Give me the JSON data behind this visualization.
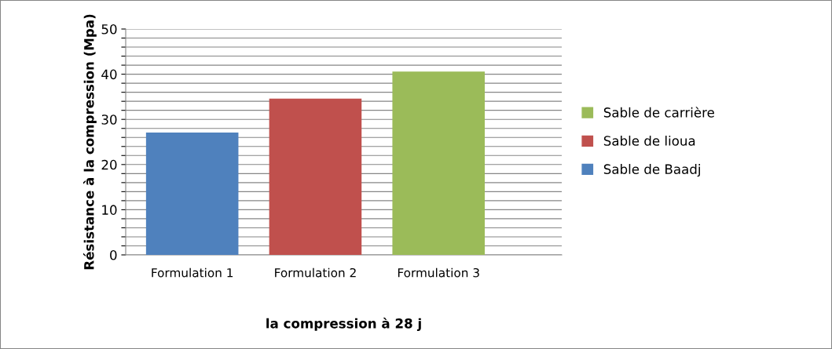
{
  "chart_data": {
    "type": "bar",
    "xlabel": "la compression à 28 j",
    "ylabel": "Résistance à la compression (Mpa)",
    "categories": [
      "Formulation 1",
      "Formulation 2",
      "Formulation 3"
    ],
    "series": [
      {
        "name": "Sable de Baadj",
        "color": "#4f81bd",
        "values": [
          27.1,
          null,
          null
        ]
      },
      {
        "name": "Sable de lioua",
        "color": "#c0504d",
        "values": [
          null,
          34.6,
          null
        ]
      },
      {
        "name": "Sable de carrière",
        "color": "#9bbb59",
        "values": [
          null,
          null,
          40.6
        ]
      }
    ],
    "ylim": [
      0,
      50
    ],
    "yticks": [
      0,
      {
        "value": 2,
        "label": null
      },
      {
        "value": 4,
        "label": null
      },
      {
        "value": 6,
        "label": null
      },
      {
        "value": 8,
        "label": null
      },
      10,
      {
        "value": 12,
        "label": null
      },
      {
        "value": 14,
        "label": null
      },
      {
        "value": 16,
        "label": null
      },
      {
        "value": 18,
        "label": null
      },
      20,
      {
        "value": 22,
        "label": null
      },
      {
        "value": 24,
        "label": null
      },
      {
        "value": 26,
        "label": null
      },
      {
        "value": 28,
        "label": null
      },
      30,
      {
        "value": 32,
        "label": null
      },
      {
        "value": 34,
        "label": null
      },
      {
        "value": 36,
        "label": null
      },
      {
        "value": 38,
        "label": null
      },
      40,
      {
        "value": 42,
        "label": null
      },
      {
        "value": 44,
        "label": null
      },
      {
        "value": 46,
        "label": null
      },
      {
        "value": 48,
        "label": null
      },
      50
    ],
    "grid": "y",
    "legend": "right"
  }
}
